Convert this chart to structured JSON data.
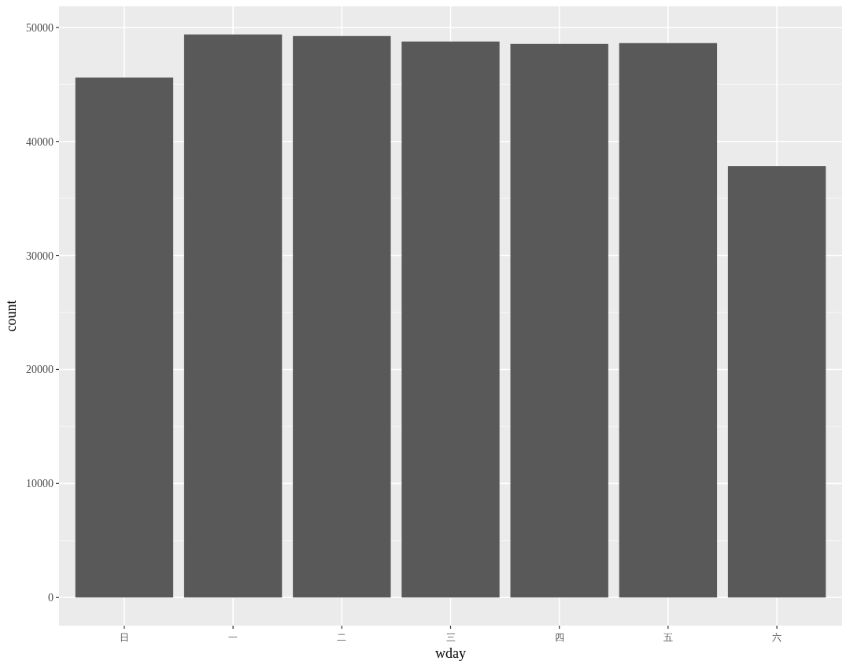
{
  "chart_data": {
    "type": "bar",
    "xlabel": "wday",
    "ylabel": "count",
    "categories": [
      "日",
      "一",
      "二",
      "三",
      "四",
      "五",
      "六"
    ],
    "values": [
      45600,
      49380,
      49240,
      48760,
      48550,
      48620,
      37830
    ],
    "color": "#595959",
    "ylim": [
      -2469,
      51849
    ],
    "yticks": [
      0,
      10000,
      20000,
      30000,
      40000,
      50000
    ],
    "grid": true
  }
}
